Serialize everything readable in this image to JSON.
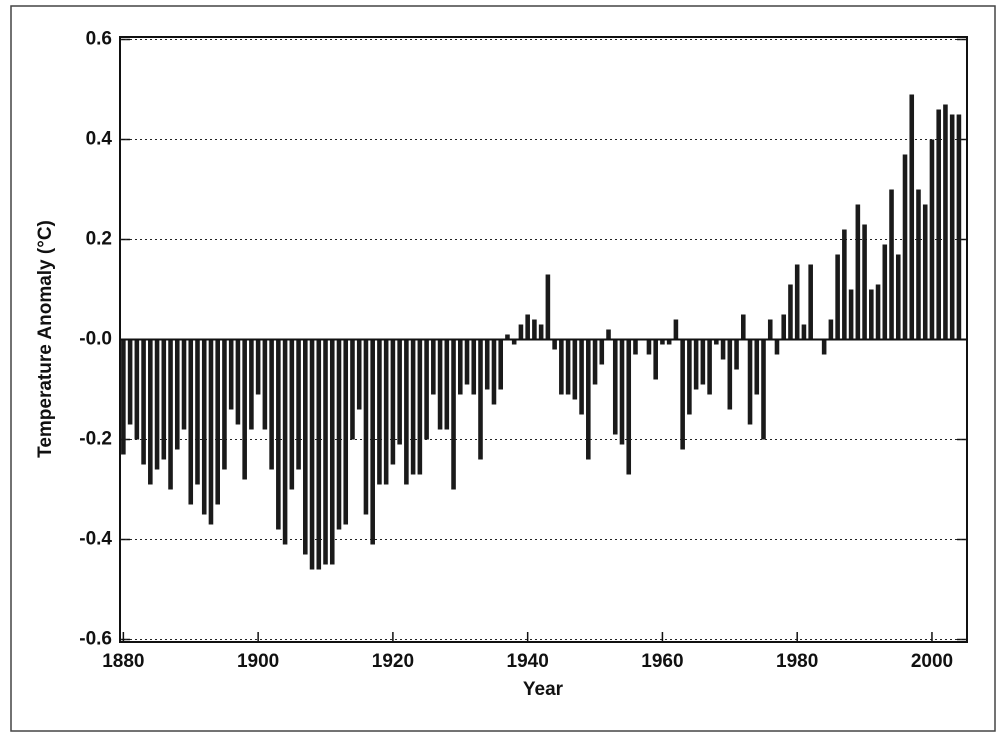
{
  "chart_data": {
    "type": "bar",
    "xlabel": "Year",
    "ylabel": "Temperature Anomaly (°C)",
    "color": "#1a1a1a",
    "x": [
      1880,
      1881,
      1882,
      1883,
      1884,
      1885,
      1886,
      1887,
      1888,
      1889,
      1890,
      1891,
      1892,
      1893,
      1894,
      1895,
      1896,
      1897,
      1898,
      1899,
      1900,
      1901,
      1902,
      1903,
      1904,
      1905,
      1906,
      1907,
      1908,
      1909,
      1910,
      1911,
      1912,
      1913,
      1914,
      1915,
      1916,
      1917,
      1918,
      1919,
      1920,
      1921,
      1922,
      1923,
      1924,
      1925,
      1926,
      1927,
      1928,
      1929,
      1930,
      1931,
      1932,
      1933,
      1934,
      1935,
      1936,
      1937,
      1938,
      1939,
      1940,
      1941,
      1942,
      1943,
      1944,
      1945,
      1946,
      1947,
      1948,
      1949,
      1950,
      1951,
      1952,
      1953,
      1954,
      1955,
      1956,
      1957,
      1958,
      1959,
      1960,
      1961,
      1962,
      1963,
      1964,
      1965,
      1966,
      1967,
      1968,
      1969,
      1970,
      1971,
      1972,
      1973,
      1974,
      1975,
      1976,
      1977,
      1978,
      1979,
      1980,
      1981,
      1982,
      1983,
      1984,
      1985,
      1986,
      1987,
      1988,
      1989,
      1990,
      1991,
      1992,
      1993,
      1994,
      1995,
      1996,
      1997,
      1998,
      1999,
      2000,
      2001,
      2002,
      2003,
      2004
    ],
    "values": [
      -0.23,
      -0.17,
      -0.2,
      -0.25,
      -0.29,
      -0.26,
      -0.24,
      -0.3,
      -0.22,
      -0.18,
      -0.33,
      -0.29,
      -0.35,
      -0.37,
      -0.33,
      -0.26,
      -0.14,
      -0.17,
      -0.28,
      -0.18,
      -0.11,
      -0.18,
      -0.26,
      -0.38,
      -0.41,
      -0.3,
      -0.26,
      -0.43,
      -0.46,
      -0.46,
      -0.45,
      -0.45,
      -0.38,
      -0.37,
      -0.2,
      -0.14,
      -0.35,
      -0.41,
      -0.29,
      -0.29,
      -0.25,
      -0.21,
      -0.29,
      -0.27,
      -0.27,
      -0.2,
      -0.11,
      -0.18,
      -0.18,
      -0.3,
      -0.11,
      -0.09,
      -0.11,
      -0.24,
      -0.1,
      -0.13,
      -0.1,
      0.01,
      -0.01,
      0.03,
      0.05,
      0.04,
      0.03,
      0.13,
      -0.02,
      -0.11,
      -0.11,
      -0.12,
      -0.15,
      -0.24,
      -0.09,
      -0.05,
      0.02,
      -0.19,
      -0.21,
      -0.27,
      -0.03,
      0.0,
      -0.03,
      -0.08,
      -0.01,
      -0.01,
      0.04,
      -0.22,
      -0.15,
      -0.1,
      -0.09,
      -0.11,
      -0.01,
      -0.04,
      -0.14,
      -0.06,
      0.05,
      -0.17,
      -0.11,
      -0.2,
      0.04,
      -0.03,
      0.05,
      0.11,
      0.15,
      0.03,
      0.15,
      0.0,
      -0.03,
      0.04,
      0.17,
      0.22,
      0.1,
      0.27,
      0.23,
      0.1,
      0.11,
      0.19,
      0.3,
      0.17,
      0.37,
      0.49,
      0.3,
      0.27,
      0.4,
      0.46,
      0.47,
      0.45,
      0.45
    ],
    "xlim": [
      1879.5,
      2005.2
    ],
    "xticks": [
      1880,
      1900,
      1920,
      1940,
      1960,
      1980,
      2000
    ],
    "ylim": [
      -0.605,
      0.605
    ],
    "yticks": [
      0.6,
      0.4,
      0.2,
      {
        "value": 0,
        "label": "-0.0"
      },
      -0.2,
      -0.4,
      -0.6
    ],
    "grid": true
  }
}
